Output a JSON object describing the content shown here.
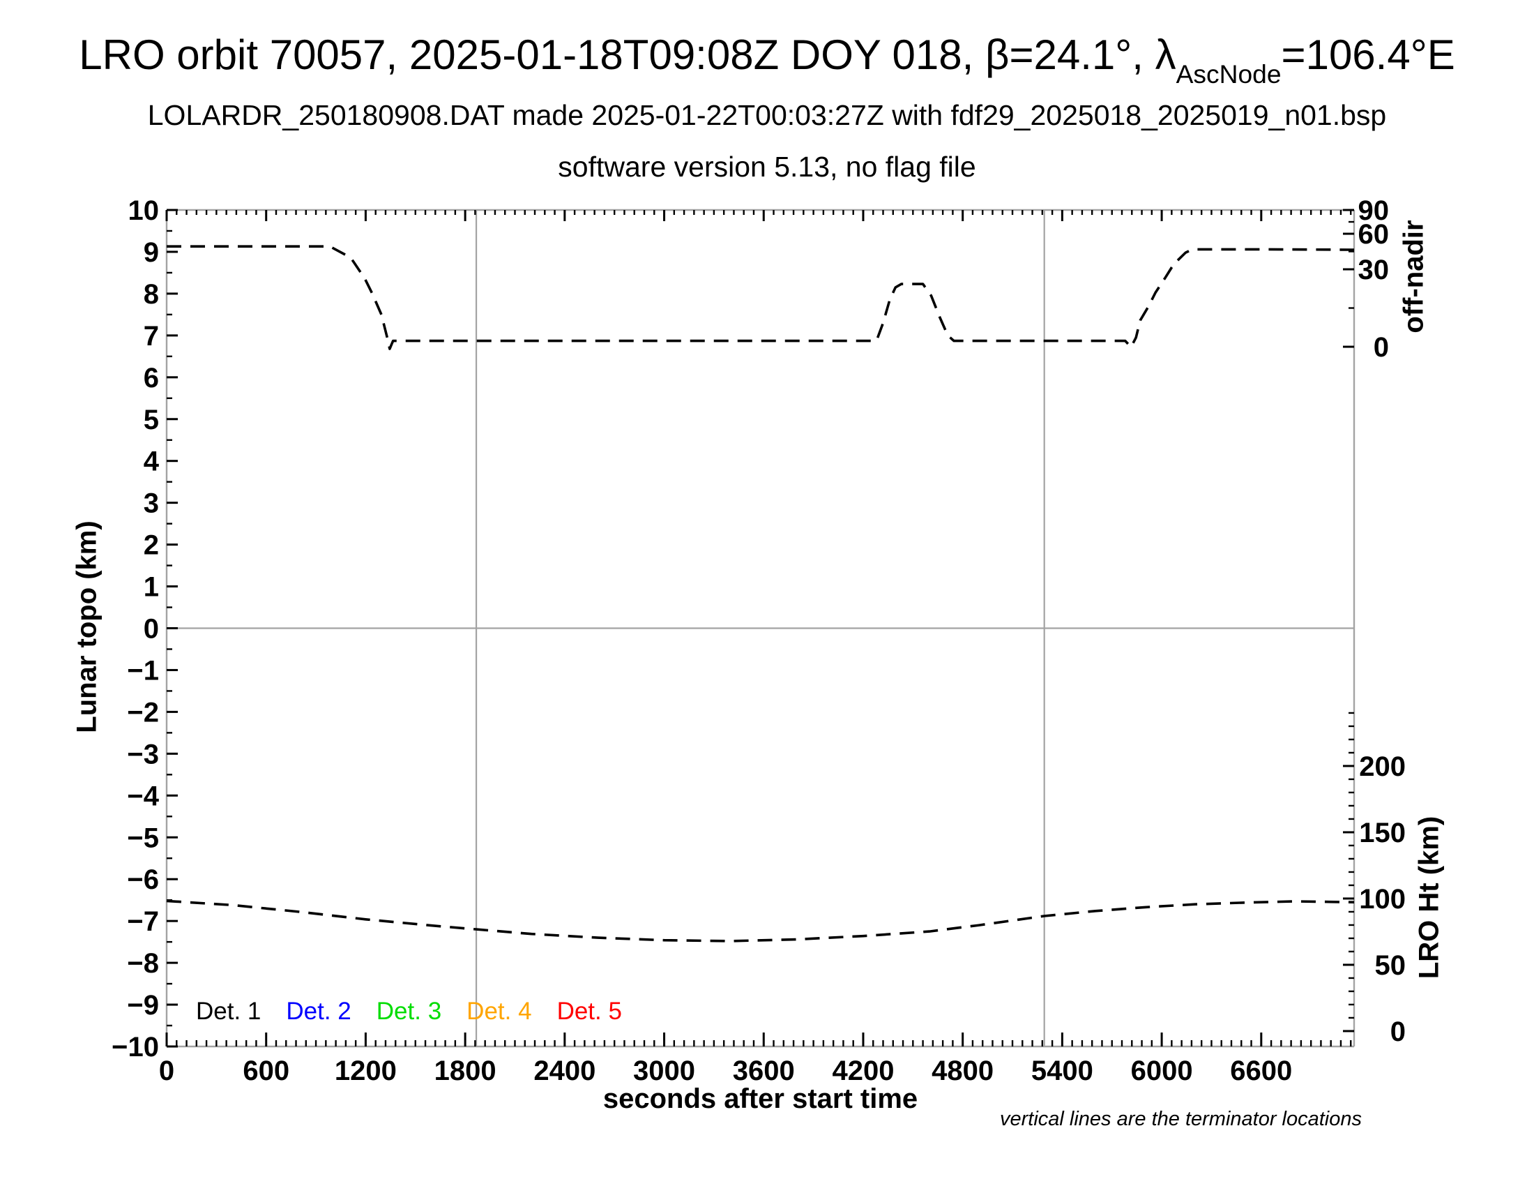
{
  "header": {
    "title_prefix": "LRO orbit 70057, 2025-01-18T09:08Z DOY 018, β=24.1°, λ",
    "title_sub": "AscNode",
    "title_suffix": "=106.4°E",
    "subtitle": "LOLARDR_250180908.DAT made 2025-01-22T00:03:27Z with fdf29_2025018_2025019_n01.bsp",
    "software_line": "software version 5.13, no flag file"
  },
  "chart_data": {
    "type": "line",
    "title": "LRO orbit 70057, 2025-01-18T09:08Z DOY 018, β=24.1°, λAscNode=106.4°E",
    "xlabel": "seconds after start time",
    "ylabel_left": "Lunar topo (km)",
    "ylabel_right_top": "off-nadir",
    "ylabel_right_bottom": "LRO Ht (km)",
    "footnote": "vertical lines are the terminator locations",
    "xlim": [
      0,
      7160
    ],
    "ylim_left": [
      -10,
      10
    ],
    "x_major_ticks": [
      0,
      600,
      1200,
      1800,
      2400,
      3000,
      3600,
      4200,
      4800,
      5400,
      6000,
      6600
    ],
    "x_minor_step_s": 60,
    "left_major_ticks": [
      -10,
      -9,
      -8,
      -7,
      -6,
      -5,
      -4,
      -3,
      -2,
      -1,
      0,
      1,
      2,
      3,
      4,
      5,
      6,
      7,
      8,
      9,
      10
    ],
    "left_minor_step": 0.5,
    "off_nadir_axis": {
      "unit": "degrees",
      "major_ticks": [
        {
          "deg": 90,
          "frac": 0.0
        },
        {
          "deg": 60,
          "frac": 0.0284
        },
        {
          "deg": 30,
          "frac": 0.0709
        },
        {
          "deg": 0,
          "frac": 0.1635
        }
      ],
      "minor_fracs": [
        0.0142,
        0.0496,
        0.1172
      ]
    },
    "lro_ht_axis": {
      "unit": "km",
      "major_ticks": [
        0,
        50,
        100,
        150,
        200
      ],
      "minor_step_km": 10,
      "minor_max_km": 240,
      "zero_frac": 0.9816,
      "frac_per_km": 0.0015846
    },
    "terminator_lines_s": [
      1867,
      5292
    ],
    "zero_line_topo": 0,
    "grid_color": "#a3a3a3",
    "curve_color": "#000000",
    "series": [
      {
        "name": "spacecraft off-nadir angle",
        "axis": "off-nadir",
        "style": "dashed",
        "note": "points are [seconds, left-axis plot units, approx off-nadir degrees]",
        "points": [
          [
            0,
            9.13,
            49
          ],
          [
            600,
            9.13,
            49
          ],
          [
            984,
            9.13,
            49
          ],
          [
            1110,
            8.86,
            40
          ],
          [
            1195,
            8.36,
            26
          ],
          [
            1240,
            8.0,
            21
          ],
          [
            1295,
            7.5,
            13
          ],
          [
            1330,
            6.95,
            3.5
          ],
          [
            1345,
            6.68,
            0
          ],
          [
            1365,
            6.87,
            2.3
          ],
          [
            2000,
            6.87,
            2.3
          ],
          [
            3000,
            6.87,
            2.3
          ],
          [
            4280,
            6.87,
            2.3
          ],
          [
            4320,
            7.3,
            9
          ],
          [
            4360,
            7.85,
            18
          ],
          [
            4395,
            8.15,
            23
          ],
          [
            4430,
            8.23,
            24.3
          ],
          [
            4560,
            8.23,
            24.3
          ],
          [
            4610,
            7.95,
            20
          ],
          [
            4660,
            7.45,
            12
          ],
          [
            4710,
            7.0,
            4.4
          ],
          [
            4747,
            6.87,
            2.3
          ],
          [
            5200,
            6.87,
            2.3
          ],
          [
            5780,
            6.87,
            2.3
          ],
          [
            5815,
            6.72,
            0.5
          ],
          [
            5845,
            6.95,
            3.5
          ],
          [
            5870,
            7.36,
            10
          ],
          [
            5921,
            7.7,
            16
          ],
          [
            5963,
            8.03,
            21
          ],
          [
            6018,
            8.36,
            26
          ],
          [
            6072,
            8.7,
            34
          ],
          [
            6144,
            8.98,
            44
          ],
          [
            6186,
            9.06,
            47
          ],
          [
            6600,
            9.06,
            47
          ],
          [
            7160,
            9.05,
            46
          ]
        ]
      },
      {
        "name": "LRO height above surface",
        "axis": "lro-ht",
        "style": "dashed",
        "note": "points are [seconds, left-axis plot units, approx height km]",
        "points": [
          [
            0,
            -6.52,
            98
          ],
          [
            400,
            -6.62,
            95
          ],
          [
            800,
            -6.78,
            90
          ],
          [
            1200,
            -6.96,
            84
          ],
          [
            1600,
            -7.11,
            80
          ],
          [
            1867,
            -7.2,
            77
          ],
          [
            2200,
            -7.31,
            73
          ],
          [
            2600,
            -7.4,
            70
          ],
          [
            3000,
            -7.46,
            69
          ],
          [
            3400,
            -7.48,
            68
          ],
          [
            3800,
            -7.44,
            69
          ],
          [
            4200,
            -7.36,
            72
          ],
          [
            4600,
            -7.25,
            75
          ],
          [
            4900,
            -7.1,
            80
          ],
          [
            5292,
            -6.88,
            87
          ],
          [
            5600,
            -6.76,
            91
          ],
          [
            5900,
            -6.67,
            93
          ],
          [
            6200,
            -6.6,
            96
          ],
          [
            6500,
            -6.56,
            97
          ],
          [
            6800,
            -6.53,
            98
          ],
          [
            7160,
            -6.55,
            97
          ]
        ]
      }
    ],
    "legend": {
      "items": [
        {
          "label": "Det. 1",
          "color": "#000000"
        },
        {
          "label": "Det. 2",
          "color": "#0000ff"
        },
        {
          "label": "Det. 3",
          "color": "#00dd00"
        },
        {
          "label": "Det. 4",
          "color": "#ffa500"
        },
        {
          "label": "Det. 5",
          "color": "#ff0000"
        }
      ]
    }
  }
}
